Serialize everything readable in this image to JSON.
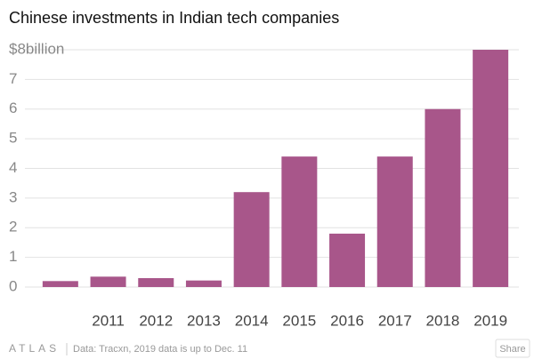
{
  "chart_data": {
    "type": "bar",
    "title": "Chinese investments in Indian tech companies",
    "categories": [
      null,
      "2011",
      "2012",
      "2013",
      "2014",
      "2015",
      "2016",
      "2017",
      "2018",
      "2019"
    ],
    "values": [
      0.2,
      0.35,
      0.3,
      0.22,
      3.2,
      4.4,
      1.8,
      4.4,
      6.0,
      8.0
    ],
    "color": "#a8568a",
    "ylim": [
      0,
      8
    ],
    "yticks": [
      0,
      1,
      2,
      3,
      4,
      5,
      6,
      7,
      {
        "value": 8,
        "label": "$8billion"
      }
    ],
    "grid": true
  },
  "footer": {
    "brand": "ATLAS",
    "source": "Data:  Tracxn, 2019 data is up to Dec. 11",
    "share": "Share"
  }
}
